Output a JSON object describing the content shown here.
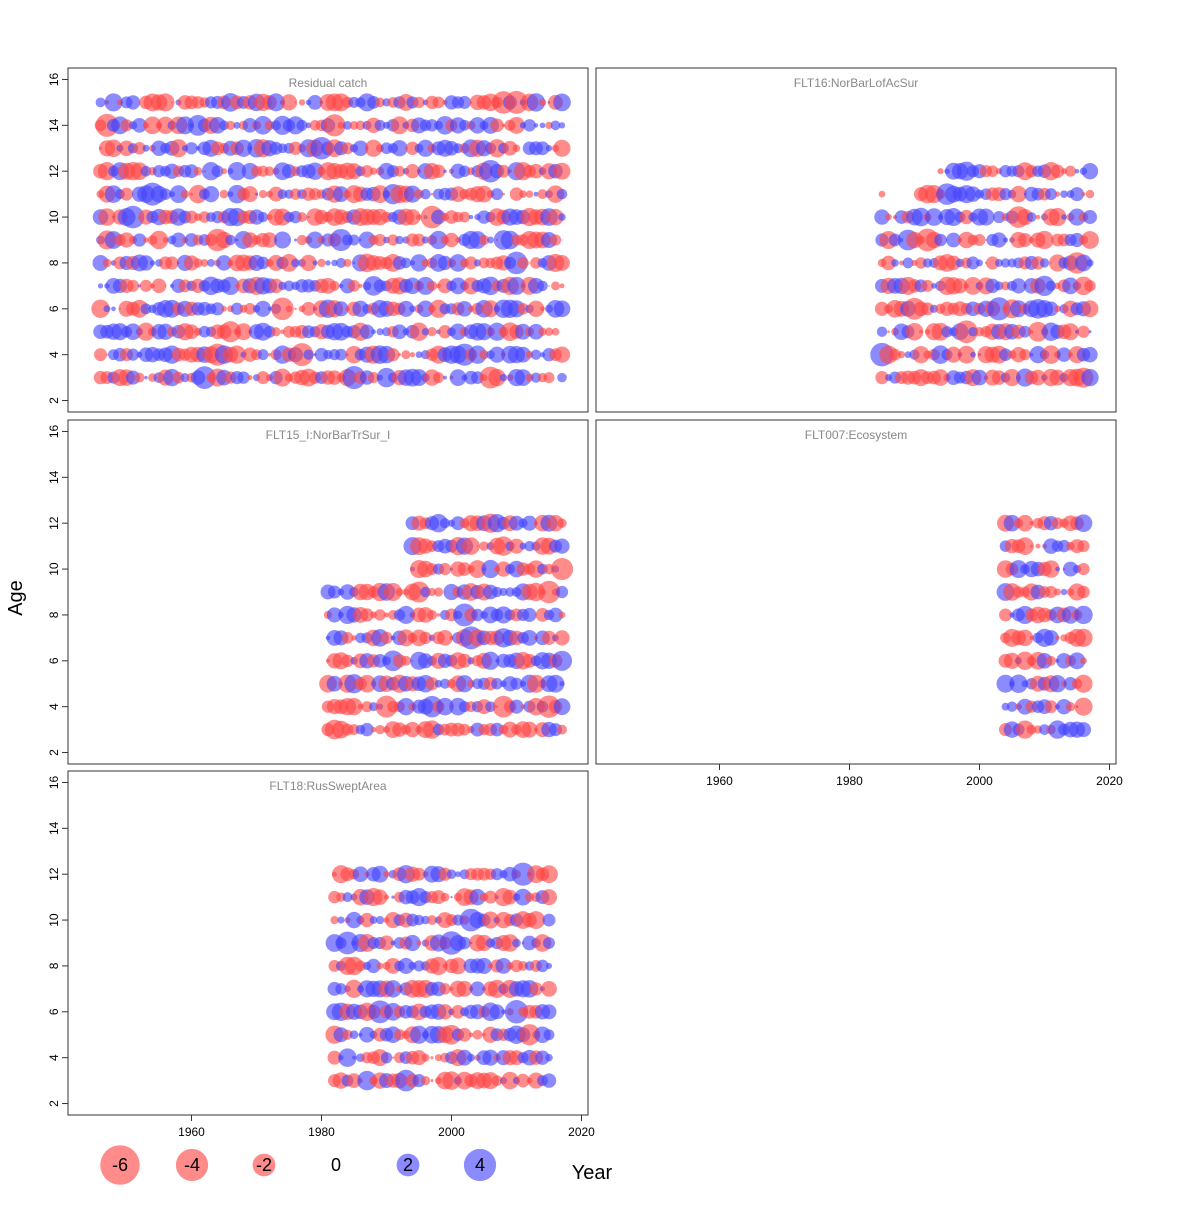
{
  "figure": {
    "xlabel": "Year",
    "ylabel": "Age"
  },
  "colors": {
    "negative": "#ff4444",
    "positive": "#4444ff",
    "panel_border": "#333333",
    "title_text": "#888888"
  },
  "chart_data": [
    {
      "type": "scatter",
      "title": "Residual catch",
      "x_range": [
        1946,
        2017
      ],
      "ages": [
        3,
        4,
        5,
        6,
        7,
        8,
        9,
        10,
        11,
        12,
        13,
        14,
        15
      ],
      "ylim": [
        1.5,
        16.5
      ],
      "xlim": [
        1941,
        2021
      ],
      "yticks": [
        "2",
        "4",
        "6",
        "8",
        "10",
        "12",
        "14",
        "16"
      ],
      "xticks": [],
      "seed": 11
    },
    {
      "type": "scatter",
      "title": "FLT16:NorBarLofAcSur",
      "x_range": [
        1985,
        2017
      ],
      "ages": [
        3,
        4,
        5,
        6,
        7,
        8,
        9,
        10,
        11
      ],
      "extra_rows": [
        {
          "age": 12,
          "x_range": [
            1994,
            2017
          ]
        }
      ],
      "gap_years": [
        {
          "age": 11,
          "years": [
            1986,
            1987,
            1988,
            1989,
            1990
          ]
        }
      ],
      "ylim": [
        1.5,
        16.5
      ],
      "xlim": [
        1941,
        2021
      ],
      "yticks": [],
      "xticks": [],
      "seed": 23
    },
    {
      "type": "scatter",
      "title": "FLT15_I:NorBarTrSur_I",
      "x_range": [
        1981,
        2017
      ],
      "ages": [
        3,
        4,
        5,
        6,
        7,
        8,
        9
      ],
      "extra_rows": [
        {
          "age": 10,
          "x_range": [
            1994,
            2017
          ]
        },
        {
          "age": 11,
          "x_range": [
            1994,
            2017
          ]
        },
        {
          "age": 12,
          "x_range": [
            1994,
            2017
          ]
        }
      ],
      "ylim": [
        1.5,
        16.5
      ],
      "xlim": [
        1941,
        2021
      ],
      "yticks": [
        "2",
        "4",
        "6",
        "8",
        "10",
        "12",
        "14",
        "16"
      ],
      "xticks": [],
      "seed": 37
    },
    {
      "type": "scatter",
      "title": "FLT007:Ecosystem",
      "x_range": [
        2004,
        2016
      ],
      "ages": [
        3,
        4,
        5,
        6,
        7,
        8,
        9,
        10,
        11,
        12
      ],
      "ylim": [
        1.5,
        16.5
      ],
      "xlim": [
        1941,
        2021
      ],
      "yticks": [],
      "xticks": [
        "1960",
        "1980",
        "2000",
        "2020"
      ],
      "seed": 41
    },
    {
      "type": "scatter",
      "title": "FLT18:RusSweptArea",
      "x_range": [
        1982,
        2015
      ],
      "ages": [
        3,
        4,
        5,
        6,
        7,
        8,
        9,
        10,
        11,
        12
      ],
      "ylim": [
        1.5,
        16.5
      ],
      "xlim": [
        1941,
        2021
      ],
      "yticks": [
        "2",
        "4",
        "6",
        "8",
        "10",
        "12",
        "14",
        "16"
      ],
      "xticks": [
        "1960",
        "1980",
        "2000",
        "2020"
      ],
      "seed": 53
    }
  ],
  "legend": {
    "items": [
      {
        "value": -6,
        "label": "-6"
      },
      {
        "value": -4,
        "label": "-4"
      },
      {
        "value": -2,
        "label": "-2"
      },
      {
        "value": 0,
        "label": "0"
      },
      {
        "value": 2,
        "label": "2"
      },
      {
        "value": 4,
        "label": "4"
      }
    ]
  }
}
